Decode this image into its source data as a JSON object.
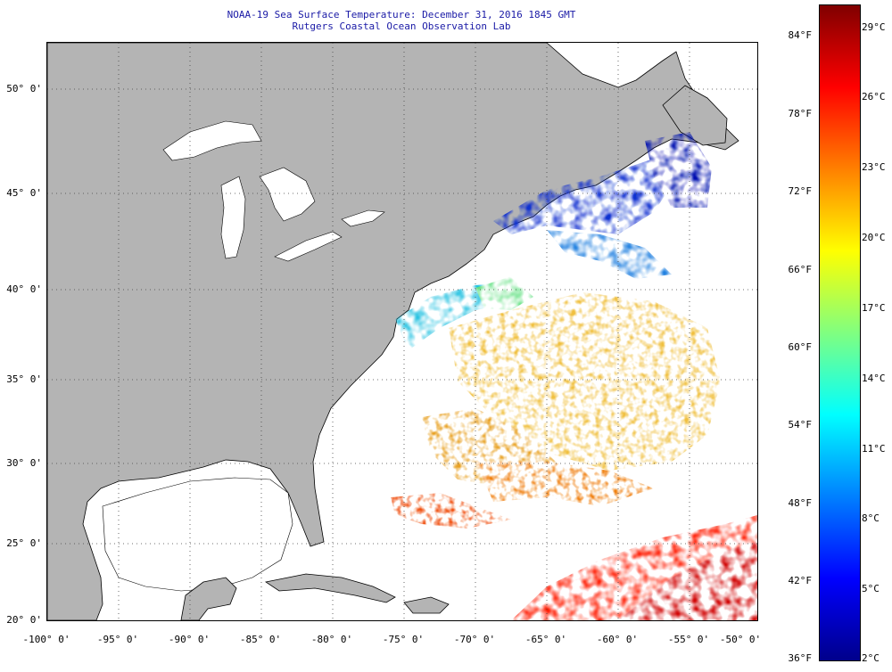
{
  "header": {
    "title": "NOAA-19 Sea Surface Temperature:  December 31, 2016 1845 GMT",
    "subtitle": "Rutgers Coastal Ocean Observation Lab"
  },
  "map": {
    "region": "Western North Atlantic",
    "lon_range": [
      -100,
      -50
    ],
    "lat_range": [
      20,
      52.5
    ],
    "land_color": "#b4b4b4",
    "cloud_color": "#ffffff",
    "lat_ticks": [
      "50° 0'",
      "45° 0'",
      "40° 0'",
      "35° 0'",
      "30° 0'",
      "25° 0'",
      "20° 0'"
    ],
    "lon_ticks": [
      "-100° 0'",
      "-95° 0'",
      "-90° 0'",
      "-85° 0'",
      "-80° 0'",
      "-75° 0'",
      "-70° 0'",
      "-65° 0'",
      "-60° 0'",
      "-55° 0'",
      "-50° 0'"
    ]
  },
  "colorbar": {
    "fahrenheit_labels": [
      "84°F",
      "78°F",
      "72°F",
      "66°F",
      "60°F",
      "54°F",
      "48°F",
      "42°F",
      "36°F"
    ],
    "celsius_labels": [
      "29°C",
      "26°C",
      "23°C",
      "20°C",
      "17°C",
      "14°C",
      "11°C",
      "8°C",
      "5°C",
      "2°C"
    ],
    "gradient": [
      "#800000",
      "#ff0000",
      "#ff8000",
      "#ffff00",
      "#80ff80",
      "#00ffff",
      "#0080ff",
      "#0000ff",
      "#00008b"
    ]
  }
}
